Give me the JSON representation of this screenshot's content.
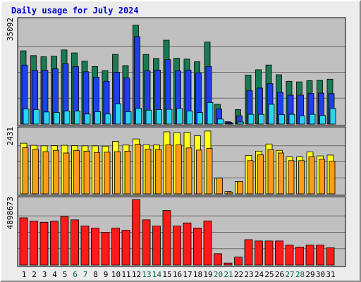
{
  "title": "Daily usage for July 2024",
  "colors": {
    "panel_bg": "#c0c0c0",
    "pages": "#1a7a52",
    "files": "#1f3fe8",
    "hits": "#29d3f2",
    "visits": "#ffff1a",
    "sites": "#ff9a1a",
    "kbytes": "#ff1a1a",
    "weekend_label": "#006e3c",
    "weekday_label": "#000000"
  },
  "chart_data": [
    {
      "type": "bar",
      "panel": "top",
      "y_axis_label": "35092",
      "ylim": [
        0,
        35092
      ],
      "categories": [
        "1",
        "2",
        "3",
        "4",
        "5",
        "6",
        "7",
        "8",
        "9",
        "10",
        "11",
        "12",
        "13",
        "14",
        "15",
        "16",
        "17",
        "18",
        "19",
        "20",
        "21",
        "22",
        "23",
        "24",
        "25",
        "26",
        "27",
        "28",
        "29",
        "30",
        "31"
      ],
      "weekend": [
        false,
        false,
        false,
        false,
        false,
        true,
        true,
        false,
        false,
        false,
        false,
        false,
        true,
        true,
        false,
        false,
        false,
        false,
        false,
        true,
        true,
        false,
        false,
        false,
        false,
        false,
        true,
        true,
        false,
        false,
        false
      ],
      "series": [
        {
          "key": "pages",
          "values": [
            24800,
            23200,
            22800,
            23000,
            25100,
            24100,
            21300,
            19500,
            18100,
            23600,
            19800,
            33500,
            23600,
            22200,
            28400,
            22300,
            22000,
            21100,
            27800,
            6700,
            800,
            4900,
            16600,
            18400,
            20000,
            16700,
            14500,
            14300,
            14700,
            14800,
            15200
          ]
        },
        {
          "key": "files",
          "values": [
            20000,
            18200,
            18200,
            18700,
            20400,
            19500,
            17700,
            15900,
            14500,
            17500,
            15600,
            29600,
            18000,
            18300,
            21800,
            18000,
            18300,
            17300,
            19500,
            5100,
            600,
            2800,
            11300,
            12200,
            13700,
            10800,
            9800,
            9800,
            10400,
            10500,
            10300
          ]
        },
        {
          "key": "hits",
          "values": [
            5100,
            4900,
            4100,
            3900,
            4400,
            4400,
            3400,
            4200,
            3400,
            6900,
            4200,
            5300,
            4700,
            4900,
            5000,
            5300,
            4400,
            3900,
            7300,
            1700,
            200,
            700,
            3300,
            3300,
            6700,
            3200,
            3300,
            2800,
            3300,
            2900,
            5300
          ]
        }
      ]
    },
    {
      "type": "bar",
      "panel": "middle",
      "y_axis_label": "2431",
      "ylim": [
        0,
        2431
      ],
      "categories": [
        "1",
        "2",
        "3",
        "4",
        "5",
        "6",
        "7",
        "8",
        "9",
        "10",
        "11",
        "12",
        "13",
        "14",
        "15",
        "16",
        "17",
        "18",
        "19",
        "20",
        "21",
        "22",
        "23",
        "24",
        "25",
        "26",
        "27",
        "28",
        "29",
        "30",
        "31"
      ],
      "series": [
        {
          "key": "visits",
          "values": [
            1920,
            1840,
            1820,
            1830,
            1840,
            1830,
            1820,
            1820,
            1810,
            1990,
            1850,
            2080,
            1860,
            1850,
            2350,
            2320,
            2330,
            2200,
            2380,
            590,
            90,
            470,
            1460,
            1620,
            1890,
            1650,
            1400,
            1400,
            1590,
            1440,
            1470
          ]
        },
        {
          "key": "sites",
          "values": [
            1750,
            1690,
            1600,
            1650,
            1550,
            1640,
            1620,
            1570,
            1580,
            1600,
            1620,
            1880,
            1690,
            1680,
            1860,
            1860,
            1740,
            1660,
            1720,
            600,
            60,
            470,
            1260,
            1480,
            1680,
            1550,
            1260,
            1260,
            1410,
            1310,
            1240
          ]
        }
      ]
    },
    {
      "type": "bar",
      "panel": "bottom",
      "y_axis_label": "4898673",
      "ylim": [
        0,
        4898673
      ],
      "categories": [
        "1",
        "2",
        "3",
        "4",
        "5",
        "6",
        "7",
        "8",
        "9",
        "10",
        "11",
        "12",
        "13",
        "14",
        "15",
        "16",
        "17",
        "18",
        "19",
        "20",
        "21",
        "22",
        "23",
        "24",
        "25",
        "26",
        "27",
        "28",
        "29",
        "30",
        "31"
      ],
      "series": [
        {
          "key": "kbytes",
          "values": [
            3530000,
            3280000,
            3200000,
            3280000,
            3630000,
            3380000,
            2920000,
            2760000,
            2440000,
            2760000,
            2600000,
            4898673,
            3380000,
            2920000,
            4080000,
            2920000,
            3150000,
            2770000,
            3300000,
            850000,
            150000,
            600000,
            1900000,
            1800000,
            1800000,
            1800000,
            1500000,
            1350000,
            1500000,
            1500000,
            1290000
          ]
        }
      ]
    }
  ]
}
